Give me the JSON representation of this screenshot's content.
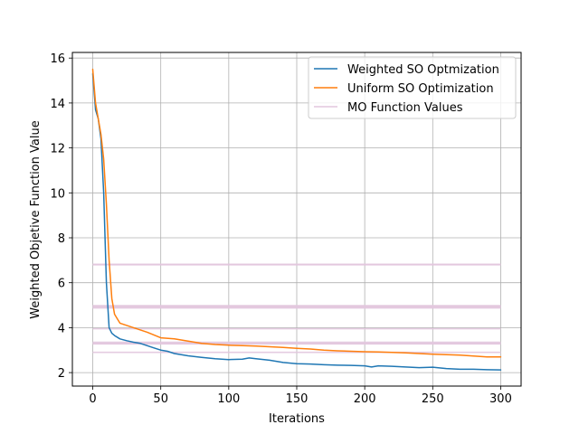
{
  "chart_data": {
    "type": "line",
    "title": "",
    "xlabel": "Iterations",
    "ylabel": "Weighted Objetive Function Value",
    "xlim": [
      -15,
      315
    ],
    "ylim": [
      1.4,
      16.25
    ],
    "xticks": [
      0,
      50,
      100,
      150,
      200,
      250,
      300
    ],
    "yticks": [
      2,
      4,
      6,
      8,
      10,
      12,
      14,
      16
    ],
    "grid": true,
    "legend_position": "top-right",
    "series": [
      {
        "name": "Weighted SO Optmization",
        "color": "#1f77b4",
        "x": [
          0,
          2,
          4,
          6,
          8,
          10,
          12,
          14,
          16,
          20,
          25,
          30,
          35,
          40,
          45,
          50,
          55,
          60,
          70,
          80,
          90,
          100,
          110,
          115,
          120,
          130,
          140,
          150,
          160,
          170,
          180,
          190,
          200,
          205,
          210,
          220,
          230,
          240,
          250,
          260,
          270,
          280,
          290,
          300
        ],
        "y": [
          15.3,
          13.7,
          13.3,
          12.4,
          10.0,
          6.0,
          4.0,
          3.75,
          3.65,
          3.5,
          3.42,
          3.35,
          3.3,
          3.2,
          3.1,
          3.0,
          2.95,
          2.85,
          2.75,
          2.68,
          2.62,
          2.58,
          2.6,
          2.65,
          2.62,
          2.55,
          2.45,
          2.4,
          2.38,
          2.35,
          2.33,
          2.32,
          2.3,
          2.25,
          2.3,
          2.28,
          2.25,
          2.22,
          2.24,
          2.18,
          2.15,
          2.15,
          2.13,
          2.12
        ]
      },
      {
        "name": "Uniform SO Optimization",
        "color": "#ff7f0e",
        "x": [
          0,
          2,
          4,
          6,
          8,
          10,
          12,
          14,
          16,
          18,
          20,
          25,
          30,
          40,
          50,
          60,
          70,
          80,
          90,
          100,
          110,
          120,
          130,
          140,
          150,
          160,
          170,
          180,
          190,
          200,
          210,
          220,
          230,
          240,
          250,
          260,
          270,
          280,
          290,
          300
        ],
        "y": [
          15.5,
          14.0,
          13.3,
          12.6,
          11.5,
          9.5,
          7.0,
          5.3,
          4.6,
          4.4,
          4.2,
          4.1,
          4.0,
          3.8,
          3.55,
          3.5,
          3.4,
          3.3,
          3.25,
          3.22,
          3.2,
          3.18,
          3.15,
          3.12,
          3.08,
          3.05,
          3.0,
          2.97,
          2.95,
          2.93,
          2.92,
          2.9,
          2.88,
          2.85,
          2.82,
          2.8,
          2.78,
          2.74,
          2.7,
          2.7
        ]
      }
    ],
    "reference_lines": {
      "name": "MO Function Values",
      "color": "#e2c6de",
      "x_range": [
        0,
        300
      ],
      "y_values": [
        6.8,
        6.82,
        4.98,
        4.95,
        4.92,
        4.88,
        3.95,
        3.35,
        3.3,
        3.28,
        2.9
      ]
    }
  }
}
